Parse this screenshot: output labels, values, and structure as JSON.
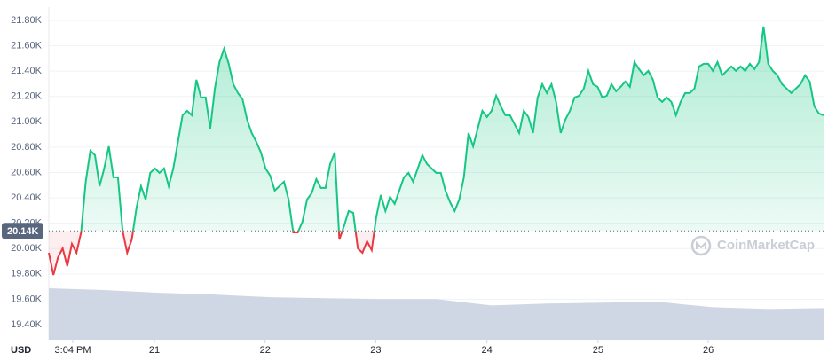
{
  "chart_data": {
    "type": "line",
    "currency": "USD",
    "watermark": "CoinMarketCap",
    "baseline": {
      "value": 20140,
      "label": "20.14K"
    },
    "colors": {
      "up": "#16c784",
      "down": "#ea3943",
      "volume": "#cfd6e4"
    },
    "grid": true,
    "xlim": [
      0,
      168
    ],
    "ylim": [
      19281,
      21905
    ],
    "yticks": [
      {
        "value": 19400,
        "label": "19.40K"
      },
      {
        "value": 19600,
        "label": "19.60K"
      },
      {
        "value": 19800,
        "label": "19.80K"
      },
      {
        "value": 20000,
        "label": "20.00K"
      },
      {
        "value": 20200,
        "label": "20.20K"
      },
      {
        "value": 20400,
        "label": "20.40K"
      },
      {
        "value": 20600,
        "label": "20.60K"
      },
      {
        "value": 20800,
        "label": "20.80K"
      },
      {
        "value": 21000,
        "label": "21.00K"
      },
      {
        "value": 21200,
        "label": "21.20K"
      },
      {
        "value": 21400,
        "label": "21.40K"
      },
      {
        "value": 21600,
        "label": "21.60K"
      },
      {
        "value": 21800,
        "label": "21.80K"
      }
    ],
    "xticks": [
      {
        "value": 5.2,
        "label": "3:04 PM"
      },
      {
        "value": 22.9,
        "label": "21"
      },
      {
        "value": 46.9,
        "label": "22"
      },
      {
        "value": 70.9,
        "label": "23"
      },
      {
        "value": 95,
        "label": "24"
      },
      {
        "value": 119.1,
        "label": "25"
      },
      {
        "value": 143,
        "label": "26"
      }
    ],
    "x": [
      0,
      1,
      2,
      3,
      4,
      5,
      6,
      7,
      8,
      9,
      10,
      11,
      12,
      13,
      14,
      15,
      16,
      17,
      18,
      19,
      20,
      21,
      22,
      23,
      24,
      25,
      26,
      27,
      28,
      29,
      30,
      31,
      32,
      33,
      34,
      35,
      36,
      37,
      38,
      39,
      40,
      41,
      42,
      43,
      44,
      45,
      46,
      47,
      48,
      49,
      50,
      51,
      52,
      53,
      54,
      55,
      56,
      57,
      58,
      59,
      60,
      61,
      62,
      63,
      64,
      65,
      66,
      67,
      68,
      69,
      70,
      71,
      72,
      73,
      74,
      75,
      76,
      77,
      78,
      79,
      80,
      81,
      82,
      83,
      84,
      85,
      86,
      87,
      88,
      89,
      90,
      91,
      92,
      93,
      94,
      95,
      96,
      97,
      98,
      99,
      100,
      101,
      102,
      103,
      104,
      105,
      106,
      107,
      108,
      109,
      110,
      111,
      112,
      113,
      114,
      115,
      116,
      117,
      118,
      119,
      120,
      121,
      122,
      123,
      124,
      125,
      126,
      127,
      128,
      129,
      130,
      131,
      132,
      133,
      134,
      135,
      136,
      137,
      138,
      139,
      140,
      141,
      142,
      143,
      144,
      145,
      146,
      147,
      148,
      149,
      150,
      151,
      152,
      153,
      154,
      155,
      156,
      157,
      158,
      159,
      160,
      161,
      162,
      163,
      164,
      165,
      166,
      167,
      168
    ],
    "values": [
      19967,
      19792,
      19932,
      20002,
      19862,
      20037,
      19967,
      20128,
      20527,
      20772,
      20737,
      20492,
      20632,
      20807,
      20562,
      20562,
      20142,
      19967,
      20072,
      20317,
      20492,
      20387,
      20597,
      20632,
      20597,
      20632,
      20492,
      20632,
      20842,
      21052,
      21087,
      21052,
      21332,
      21192,
      21192,
      20947,
      21262,
      21472,
      21577,
      21458,
      21297,
      21227,
      21178,
      21017,
      20912,
      20842,
      20758,
      20632,
      20576,
      20457,
      20492,
      20527,
      20387,
      20128,
      20128,
      20212,
      20387,
      20436,
      20548,
      20478,
      20478,
      20667,
      20758,
      20072,
      20177,
      20296,
      20282,
      20002,
      19967,
      20058,
      19988,
      20247,
      20422,
      20296,
      20408,
      20352,
      20457,
      20562,
      20597,
      20527,
      20632,
      20737,
      20667,
      20632,
      20597,
      20597,
      20457,
      20366,
      20296,
      20387,
      20562,
      20912,
      20807,
      20947,
      21087,
      21038,
      21087,
      21206,
      21122,
      21052,
      21052,
      20982,
      20912,
      21087,
      21038,
      20912,
      21192,
      21297,
      21227,
      21297,
      21157,
      20912,
      21017,
      21087,
      21192,
      21206,
      21262,
      21402,
      21297,
      21276,
      21192,
      21206,
      21297,
      21241,
      21276,
      21318,
      21276,
      21472,
      21416,
      21367,
      21402,
      21332,
      21192,
      21157,
      21192,
      21157,
      21052,
      21157,
      21227,
      21227,
      21262,
      21437,
      21458,
      21458,
      21402,
      21472,
      21367,
      21402,
      21437,
      21402,
      21437,
      21402,
      21458,
      21416,
      21472,
      21752,
      21458,
      21402,
      21367,
      21297,
      21262,
      21227,
      21262,
      21297,
      21367,
      21318,
      21122,
      21066,
      21052
    ],
    "volume": {
      "x": [
        0,
        12,
        24,
        36,
        48,
        60,
        72,
        84,
        96,
        108,
        120,
        132,
        144,
        156,
        168
      ],
      "values": [
        57,
        55,
        52,
        50,
        47,
        46,
        45,
        45,
        38,
        40,
        41,
        42,
        36,
        34,
        35
      ]
    }
  }
}
